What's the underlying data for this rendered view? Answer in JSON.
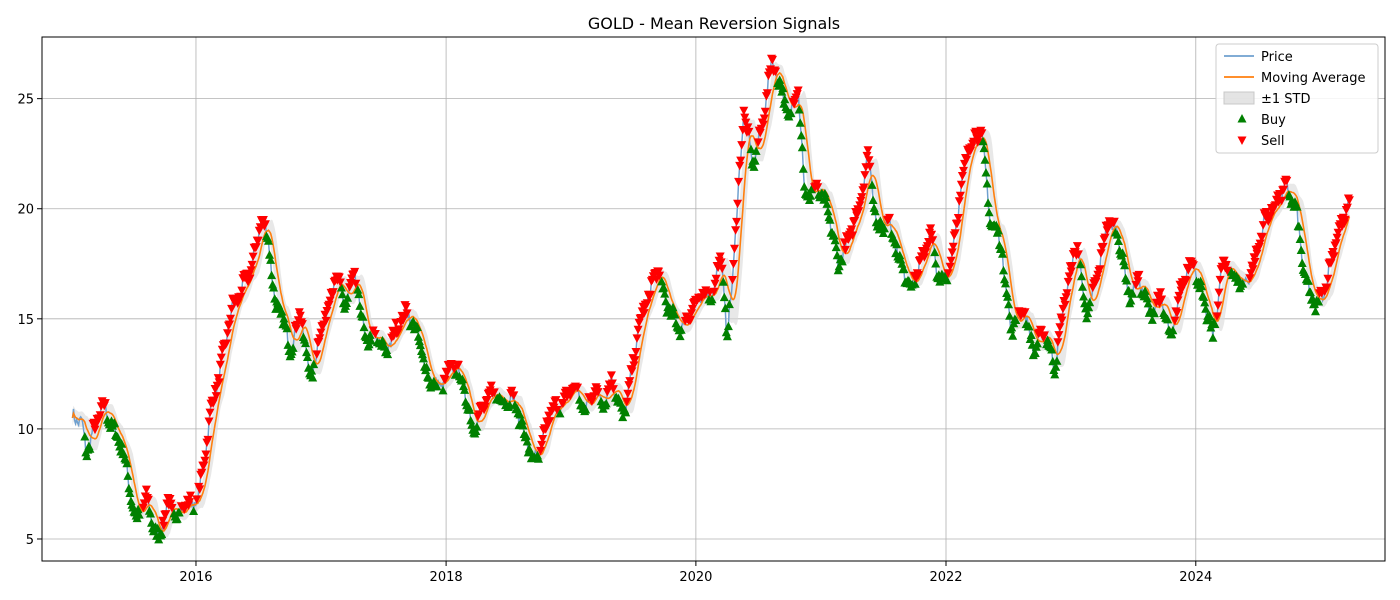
{
  "chart_data": {
    "type": "line",
    "title": "GOLD - Mean Reversion Signals",
    "xlabel": "",
    "ylabel": "",
    "x_ticks": [
      "2016",
      "2018",
      "2020",
      "2022",
      "2024"
    ],
    "y_ticks": [
      5,
      10,
      15,
      20,
      25
    ],
    "xlim": [
      "2014-10-08",
      "2025-07-07"
    ],
    "ylim": [
      4.0,
      27.8
    ],
    "grid": true,
    "legend_position": "top-right",
    "legend": [
      {
        "label": "Price",
        "kind": "line",
        "color": "#6fa0cf"
      },
      {
        "label": "Moving Average",
        "kind": "line",
        "color": "#ff7f0e"
      },
      {
        "label": "±1 STD",
        "kind": "band",
        "color": "#d8d8d8"
      },
      {
        "label": "Buy",
        "kind": "marker-up",
        "color": "#008000"
      },
      {
        "label": "Sell",
        "kind": "marker-down",
        "color": "#ff0000"
      }
    ],
    "price_anchors": [
      [
        "2015-01-05",
        10.6
      ],
      [
        "2015-02-01",
        10.3
      ],
      [
        "2015-02-15",
        8.9
      ],
      [
        "2015-03-05",
        9.8
      ],
      [
        "2015-04-05",
        11.1
      ],
      [
        "2015-05-01",
        10.1
      ],
      [
        "2015-06-01",
        9.1
      ],
      [
        "2015-06-25",
        7.0
      ],
      [
        "2015-07-10",
        5.8
      ],
      [
        "2015-08-10",
        6.9
      ],
      [
        "2015-09-01",
        5.4
      ],
      [
        "2015-09-15",
        5.0
      ],
      [
        "2015-10-10",
        6.7
      ],
      [
        "2015-11-01",
        6.0
      ],
      [
        "2015-12-01",
        6.6
      ],
      [
        "2016-01-01",
        6.6
      ],
      [
        "2016-01-15",
        7.5
      ],
      [
        "2016-02-15",
        11.0
      ],
      [
        "2016-03-10",
        12.5
      ],
      [
        "2016-04-15",
        15.5
      ],
      [
        "2016-05-10",
        16.2
      ],
      [
        "2016-06-15",
        17.5
      ],
      [
        "2016-07-10",
        19.6
      ],
      [
        "2016-08-01",
        18.5
      ],
      [
        "2016-08-20",
        15.5
      ],
      [
        "2016-09-10",
        15.2
      ],
      [
        "2016-10-01",
        13.5
      ],
      [
        "2016-11-01",
        15.3
      ],
      [
        "2016-12-01",
        12.2
      ],
      [
        "2017-01-01",
        14.5
      ],
      [
        "2017-02-15",
        17.0
      ],
      [
        "2017-03-10",
        15.6
      ],
      [
        "2017-04-10",
        17.0
      ],
      [
        "2017-05-10",
        14.0
      ],
      [
        "2017-06-10",
        14.2
      ],
      [
        "2017-07-10",
        13.5
      ],
      [
        "2017-08-10",
        14.6
      ],
      [
        "2017-09-10",
        15.4
      ],
      [
        "2017-10-15",
        14.0
      ],
      [
        "2017-11-10",
        12.2
      ],
      [
        "2017-12-15",
        11.9
      ],
      [
        "2018-01-20",
        12.9
      ],
      [
        "2018-02-15",
        12.3
      ],
      [
        "2018-03-20",
        10.0
      ],
      [
        "2018-04-20",
        11.0
      ],
      [
        "2018-05-15",
        11.7
      ],
      [
        "2018-06-15",
        11.3
      ],
      [
        "2018-07-15",
        11.4
      ],
      [
        "2018-08-10",
        10.2
      ],
      [
        "2018-09-10",
        8.6
      ],
      [
        "2018-10-01",
        8.8
      ],
      [
        "2018-11-01",
        10.8
      ],
      [
        "2018-12-10",
        11.2
      ],
      [
        "2019-01-10",
        12.0
      ],
      [
        "2019-02-10",
        10.8
      ],
      [
        "2019-03-10",
        11.8
      ],
      [
        "2019-04-10",
        11.2
      ],
      [
        "2019-05-01",
        12.3
      ],
      [
        "2019-06-01",
        10.5
      ],
      [
        "2019-06-20",
        11.8
      ],
      [
        "2019-07-20",
        14.8
      ],
      [
        "2019-08-15",
        16.0
      ],
      [
        "2019-09-10",
        17.3
      ],
      [
        "2019-10-10",
        15.5
      ],
      [
        "2019-11-20",
        14.5
      ],
      [
        "2019-12-20",
        15.5
      ],
      [
        "2020-01-20",
        16.0
      ],
      [
        "2020-02-20",
        16.2
      ],
      [
        "2020-03-15",
        18.0
      ],
      [
        "2020-04-01",
        14.0
      ],
      [
        "2020-04-20",
        17.5
      ],
      [
        "2020-05-20",
        24.5
      ],
      [
        "2020-06-15",
        22.0
      ],
      [
        "2020-07-10",
        23.5
      ],
      [
        "2020-08-10",
        26.8
      ],
      [
        "2020-09-05",
        25.5
      ],
      [
        "2020-10-01",
        24.0
      ],
      [
        "2020-10-25",
        25.8
      ],
      [
        "2020-11-15",
        20.5
      ],
      [
        "2020-12-20",
        21.0
      ],
      [
        "2021-01-20",
        20.0
      ],
      [
        "2021-02-20",
        17.5
      ],
      [
        "2021-03-20",
        18.5
      ],
      [
        "2021-04-20",
        20.0
      ],
      [
        "2021-05-20",
        22.5
      ],
      [
        "2021-06-15",
        19.0
      ],
      [
        "2021-07-20",
        19.5
      ],
      [
        "2021-08-20",
        17.5
      ],
      [
        "2021-09-20",
        16.5
      ],
      [
        "2021-10-20",
        17.5
      ],
      [
        "2021-11-15",
        19.0
      ],
      [
        "2021-12-15",
        16.5
      ],
      [
        "2022-01-15",
        17.5
      ],
      [
        "2022-02-10",
        20.5
      ],
      [
        "2022-03-10",
        23.0
      ],
      [
        "2022-04-15",
        23.5
      ],
      [
        "2022-05-10",
        19.5
      ],
      [
        "2022-06-10",
        18.5
      ],
      [
        "2022-07-10",
        14.5
      ],
      [
        "2022-08-15",
        15.5
      ],
      [
        "2022-09-15",
        13.5
      ],
      [
        "2022-10-15",
        14.5
      ],
      [
        "2022-11-15",
        12.8
      ],
      [
        "2022-12-15",
        16.0
      ],
      [
        "2023-01-20",
        18.5
      ],
      [
        "2023-02-15",
        15.0
      ],
      [
        "2023-03-20",
        17.0
      ],
      [
        "2023-04-20",
        19.5
      ],
      [
        "2023-05-20",
        18.8
      ],
      [
        "2023-06-20",
        16.0
      ],
      [
        "2023-07-20",
        16.8
      ],
      [
        "2023-08-20",
        15.2
      ],
      [
        "2023-09-20",
        16.0
      ],
      [
        "2023-10-20",
        14.0
      ],
      [
        "2023-11-20",
        16.5
      ],
      [
        "2023-12-20",
        17.8
      ],
      [
        "2024-01-20",
        16.0
      ],
      [
        "2024-02-20",
        14.2
      ],
      [
        "2024-03-20",
        17.5
      ],
      [
        "2024-04-20",
        17.0
      ],
      [
        "2024-05-20",
        16.5
      ],
      [
        "2024-06-20",
        17.5
      ],
      [
        "2024-07-20",
        19.5
      ],
      [
        "2024-08-20",
        20.2
      ],
      [
        "2024-09-20",
        21.0
      ],
      [
        "2024-10-20",
        20.0
      ],
      [
        "2024-11-15",
        16.8
      ],
      [
        "2024-12-15",
        15.5
      ],
      [
        "2025-01-15",
        16.5
      ],
      [
        "2025-02-15",
        18.8
      ],
      [
        "2025-03-10",
        19.5
      ],
      [
        "2025-03-25",
        20.5
      ]
    ],
    "ma_window_days": 35,
    "signal_threshold_std": 0.35
  }
}
